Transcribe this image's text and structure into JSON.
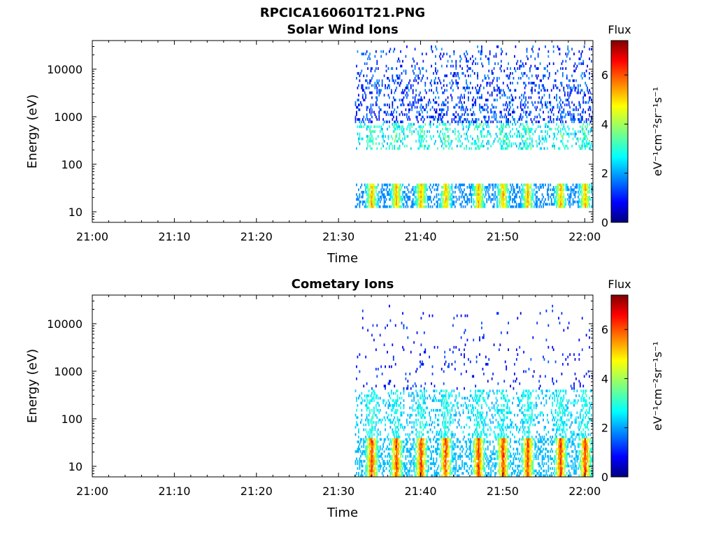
{
  "page": {
    "title": "RPCICA160601T21.PNG"
  },
  "chart_data": [
    {
      "type": "heatmap",
      "title": "Solar Wind Ions",
      "xlabel": "Time",
      "ylabel": "Energy (eV)",
      "x_ticks": [
        "21:00",
        "21:10",
        "21:20",
        "21:30",
        "21:40",
        "21:50",
        "22:00"
      ],
      "xlim": [
        "21:00",
        "22:01"
      ],
      "y_ticks": [
        10,
        100,
        1000,
        10000
      ],
      "y_tick_labels": [
        "10",
        "100",
        "1000",
        "10000"
      ],
      "ylim": [
        6,
        40000
      ],
      "y_scale": "log",
      "data_start": "21:32",
      "energy_bands_eV": [
        {
          "range": [
            15,
            40
          ],
          "peak_flux": 5.5
        },
        {
          "range": [
            200,
            700
          ],
          "peak_flux": 3.0
        },
        {
          "range": [
            700,
            30000
          ],
          "peak_flux": 1.5
        }
      ],
      "pulse_times": [
        "21:34",
        "21:37",
        "21:40",
        "21:43",
        "21:47",
        "21:50",
        "21:53",
        "21:57",
        "22:00"
      ],
      "colorbar": {
        "label": "Flux",
        "unit_label": "eV⁻¹cm⁻²sr⁻¹s⁻¹",
        "range": [
          0,
          7.4
        ],
        "ticks": [
          0,
          2,
          4,
          6
        ],
        "colormap": "jet"
      }
    },
    {
      "type": "heatmap",
      "title": "Cometary Ions",
      "xlabel": "Time",
      "ylabel": "Energy (eV)",
      "x_ticks": [
        "21:00",
        "21:10",
        "21:20",
        "21:30",
        "21:40",
        "21:50",
        "22:00"
      ],
      "xlim": [
        "21:00",
        "22:01"
      ],
      "y_ticks": [
        10,
        100,
        1000,
        10000
      ],
      "y_tick_labels": [
        "10",
        "100",
        "1000",
        "10000"
      ],
      "ylim": [
        6,
        40000
      ],
      "y_scale": "log",
      "data_start": "21:32",
      "energy_bands_eV": [
        {
          "range": [
            7,
            40
          ],
          "peak_flux": 6.5
        },
        {
          "range": [
            40,
            400
          ],
          "peak_flux": 2.5
        },
        {
          "range": [
            400,
            25000
          ],
          "peak_flux": 1.0
        }
      ],
      "pulse_times": [
        "21:34",
        "21:37",
        "21:40",
        "21:43",
        "21:47",
        "21:50",
        "21:53",
        "21:57",
        "22:00"
      ],
      "colorbar": {
        "label": "Flux",
        "unit_label": "eV⁻¹cm⁻²sr⁻¹s⁻¹",
        "range": [
          0,
          7.4
        ],
        "ticks": [
          0,
          2,
          4,
          6
        ],
        "colormap": "jet"
      }
    }
  ]
}
